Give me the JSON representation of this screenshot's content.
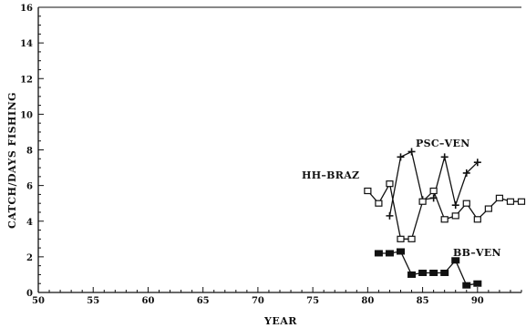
{
  "chart_data": {
    "type": "line",
    "title": "",
    "xlabel": "YEAR",
    "ylabel": "CATCH/DAYS FISHING",
    "xlim": [
      50,
      94
    ],
    "ylim": [
      0,
      16
    ],
    "x_ticks": [
      "50",
      "55",
      "60",
      "65",
      "70",
      "75",
      "80",
      "85",
      "90"
    ],
    "y_ticks": [
      "0",
      "2",
      "4",
      "6",
      "8",
      "10",
      "12",
      "14",
      "16"
    ],
    "grid": false,
    "legend": "none",
    "series": [
      {
        "name": "PSC–VEN",
        "marker": "plus",
        "color": "#111111",
        "points": [
          [
            82,
            4.3
          ],
          [
            83,
            7.6
          ],
          [
            84,
            7.9
          ],
          [
            85,
            5.2
          ],
          [
            86,
            5.3
          ],
          [
            87,
            7.6
          ],
          [
            88,
            4.9
          ],
          [
            89,
            6.7
          ],
          [
            90,
            7.3
          ]
        ]
      },
      {
        "name": "HH–BRAZ",
        "marker": "open-square",
        "color": "#111111",
        "points": [
          [
            80,
            5.7
          ],
          [
            81,
            5.0
          ],
          [
            82,
            6.1
          ],
          [
            83,
            3.0
          ],
          [
            84,
            3.0
          ],
          [
            85,
            5.1
          ],
          [
            86,
            5.7
          ],
          [
            87,
            4.1
          ],
          [
            88,
            4.3
          ],
          [
            89,
            5.0
          ],
          [
            90,
            4.1
          ],
          [
            91,
            4.7
          ],
          [
            92,
            5.3
          ],
          [
            93,
            5.1
          ],
          [
            94,
            5.1
          ]
        ]
      },
      {
        "name": "BB–VEN",
        "marker": "filled-square",
        "color": "#111111",
        "points": [
          [
            81,
            2.2
          ],
          [
            82,
            2.2
          ],
          [
            83,
            2.3
          ],
          [
            84,
            1.0
          ],
          [
            85,
            1.1
          ],
          [
            86,
            1.1
          ],
          [
            87,
            1.1
          ],
          [
            88,
            1.8
          ],
          [
            89,
            0.4
          ],
          [
            90,
            0.5
          ]
        ]
      }
    ]
  }
}
